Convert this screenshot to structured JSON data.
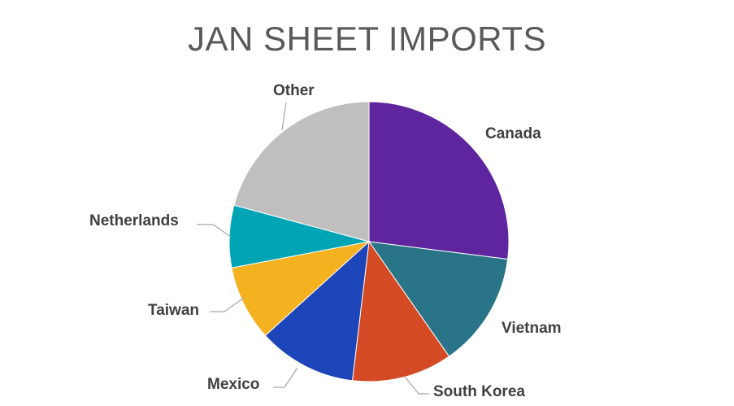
{
  "chart_data": {
    "type": "pie",
    "title": "JAN SHEET IMPORTS",
    "start_angle_deg": 0,
    "direction": "clockwise",
    "legend": "none",
    "data_labels": "category names outside with leader lines",
    "slices": [
      {
        "label": "Canada",
        "value": 27.0,
        "color": "#5f259f"
      },
      {
        "label": "Vietnam",
        "value": 13.3,
        "color": "#297587"
      },
      {
        "label": "South Korea",
        "value": 11.6,
        "color": "#d34a24"
      },
      {
        "label": "Mexico",
        "value": 11.4,
        "color": "#1b45b8"
      },
      {
        "label": "Taiwan",
        "value": 8.7,
        "color": "#f4b120"
      },
      {
        "label": "Netherlands",
        "value": 7.2,
        "color": "#00a5b5"
      },
      {
        "label": "Other",
        "value": 20.8,
        "color": "#bfbfbf"
      }
    ]
  }
}
